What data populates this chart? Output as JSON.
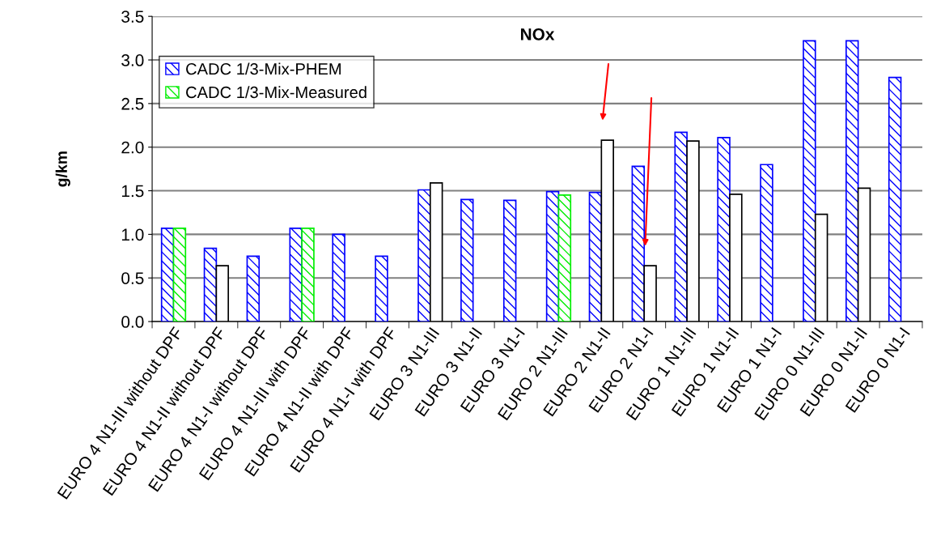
{
  "chart_data": {
    "type": "bar",
    "title": "NOx",
    "ylabel": "g/km",
    "categories": [
      "EURO 4 N1-III without DPF",
      "EURO 4 N1-II without DPF",
      "EURO 4 N1-I without DPF",
      "EURO 4 N1-III with DPF",
      "EURO 4 N1-II with DPF",
      "EURO 4 N1-I with DPF",
      "EURO 3 N1-III",
      "EURO 3 N1-II",
      "EURO 3 N1-I",
      "EURO 2 N1-III",
      "EURO 2 N1-II",
      "EURO 2 N1-I",
      "EURO 1 N1-III",
      "EURO 1 N1-II",
      "EURO 1 N1-I",
      "EURO 0 N1-III",
      "EURO 0 N1-II",
      "EURO 0 N1-I"
    ],
    "series": [
      {
        "name": "CADC 1/3-Mix-PHEM",
        "color": "#0000ff",
        "values": [
          1.07,
          0.84,
          0.75,
          1.07,
          1.0,
          0.75,
          1.51,
          1.4,
          1.39,
          1.49,
          1.48,
          1.78,
          2.17,
          2.11,
          1.8,
          3.22,
          3.22,
          2.8
        ]
      },
      {
        "name": "CADC 1/3-Mix-Measured",
        "color": "#00ee00",
        "values": [
          1.07,
          null,
          null,
          1.07,
          null,
          null,
          null,
          null,
          null,
          1.45,
          null,
          null,
          null,
          null,
          null,
          null,
          null,
          null
        ]
      },
      {
        "color": "#ffffff",
        "values": [
          null,
          0.64,
          null,
          null,
          null,
          null,
          1.59,
          null,
          null,
          null,
          2.08,
          0.64,
          2.07,
          1.46,
          null,
          1.23,
          1.53,
          null
        ]
      }
    ],
    "ylim": [
      0,
      3.5
    ],
    "yticks": [
      {
        "value": 0,
        "label": "0.0"
      },
      {
        "value": 0.5,
        "label": "0.5"
      },
      {
        "value": 1,
        "label": "1.0"
      },
      {
        "value": 1.5,
        "label": "1.5"
      },
      {
        "value": 2,
        "label": "2.0"
      },
      {
        "value": 2.5,
        "label": "2.5"
      },
      {
        "value": 3,
        "label": "3.0"
      },
      {
        "value": 3.5,
        "label": "3.5"
      }
    ],
    "grid": "y",
    "legend": "top left"
  }
}
